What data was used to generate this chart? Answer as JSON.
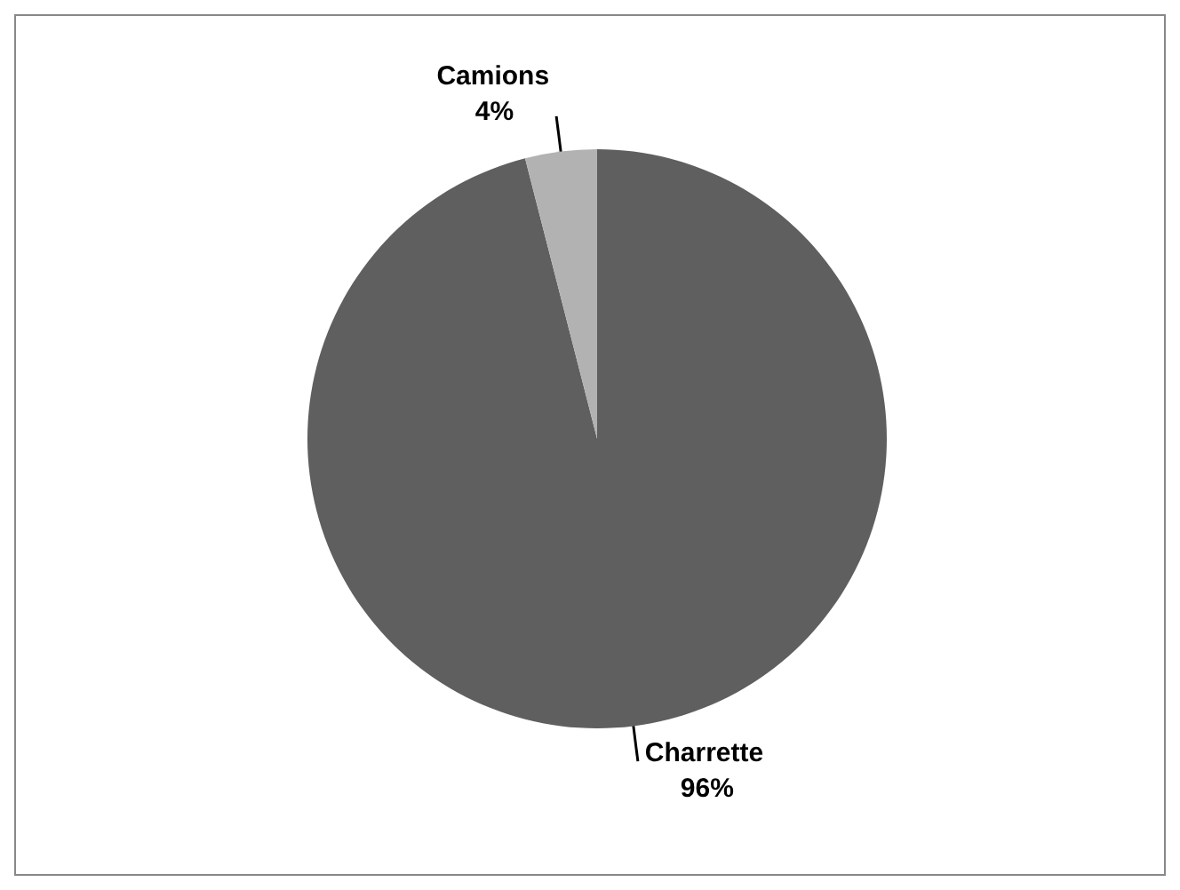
{
  "chart_data": {
    "type": "pie",
    "categories": [
      "Charrette",
      "Camions"
    ],
    "values": [
      96,
      4
    ],
    "colors": [
      "#5f5f5f",
      "#b2b2b2"
    ],
    "value_labels": [
      "96%",
      "4%"
    ]
  }
}
